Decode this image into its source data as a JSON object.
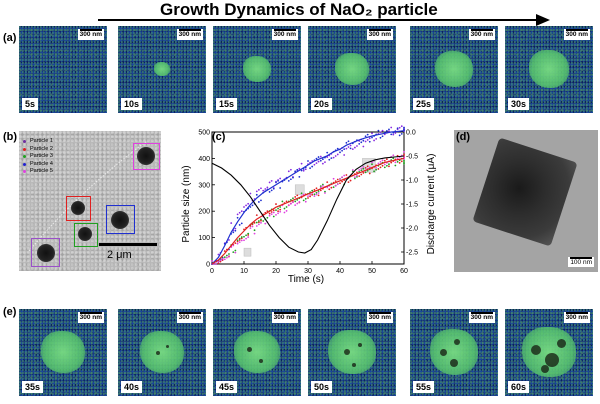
{
  "figure": {
    "title": "Growth Dynamics of NaO₂ particle",
    "panel_labels": {
      "a": "(a)",
      "b": "(b)",
      "c": "(c)",
      "d": "(d)",
      "e": "(e)"
    },
    "row_a_frames": [
      {
        "time": "5s",
        "scale": "300 nm"
      },
      {
        "time": "10s",
        "scale": "300 nm"
      },
      {
        "time": "15s",
        "scale": "300 nm"
      },
      {
        "time": "20s",
        "scale": "300 nm"
      },
      {
        "time": "25s",
        "scale": "300 nm"
      },
      {
        "time": "30s",
        "scale": "300 nm"
      }
    ],
    "row_e_frames": [
      {
        "time": "35s",
        "scale": "300 nm"
      },
      {
        "time": "40s",
        "scale": "300 nm"
      },
      {
        "time": "45s",
        "scale": "300 nm"
      },
      {
        "time": "50s",
        "scale": "300 nm"
      },
      {
        "time": "55s",
        "scale": "300 nm"
      },
      {
        "time": "60s",
        "scale": "300 nm"
      }
    ],
    "panel_b": {
      "scale_bar": "2 μm",
      "legend": [
        {
          "label": "Particle 1",
          "color": "#7030a0"
        },
        {
          "label": "Particle 2",
          "color": "#e02020"
        },
        {
          "label": "Particle 3",
          "color": "#20a020"
        },
        {
          "label": "Particle 4",
          "color": "#2020d0"
        },
        {
          "label": "Particle 5",
          "color": "#e040e0"
        }
      ]
    },
    "panel_d": {
      "scale_bar": "100 nm"
    }
  },
  "chart_data": {
    "type": "scatter",
    "xlabel": "Time (s)",
    "ylabel": "Particle size (nm)",
    "y2label": "Discharge current (μA)",
    "xlim": [
      0,
      60
    ],
    "ylim": [
      0,
      500
    ],
    "y2lim": [
      -2.75,
      0.0
    ],
    "xticks": [
      "0",
      "10",
      "20",
      "30",
      "40",
      "50",
      "60"
    ],
    "yticks": [
      "0",
      "100",
      "200",
      "300",
      "400",
      "500"
    ],
    "y2ticks": [
      "0.0",
      "-0.5",
      "-1.0",
      "-1.5",
      "-2.0",
      "-2.5"
    ],
    "x": [
      0,
      2,
      4,
      6,
      8,
      10,
      12,
      14,
      16,
      18,
      20,
      22,
      24,
      26,
      28,
      30,
      32,
      34,
      36,
      38,
      40,
      42,
      44,
      46,
      48,
      50,
      52,
      54,
      56,
      58,
      60
    ],
    "series": [
      {
        "name": "Particle 1",
        "color": "#8a2be2",
        "values": [
          0,
          30,
          85,
          140,
          185,
          225,
          255,
          275,
          290,
          300,
          315,
          330,
          345,
          355,
          365,
          375,
          385,
          395,
          405,
          415,
          425,
          440,
          450,
          460,
          470,
          480,
          490,
          500,
          505,
          510,
          515
        ]
      },
      {
        "name": "Particle 2",
        "color": "#e02020",
        "values": [
          0,
          15,
          40,
          70,
          100,
          125,
          150,
          170,
          185,
          200,
          215,
          225,
          235,
          245,
          255,
          265,
          275,
          285,
          295,
          305,
          315,
          325,
          335,
          345,
          355,
          365,
          375,
          385,
          390,
          395,
          400
        ]
      },
      {
        "name": "Particle 3",
        "color": "#20a020",
        "values": [
          0,
          10,
          35,
          60,
          90,
          115,
          140,
          160,
          178,
          195,
          210,
          222,
          234,
          246,
          256,
          266,
          276,
          286,
          296,
          306,
          316,
          326,
          336,
          346,
          356,
          366,
          372,
          378,
          385,
          390,
          395
        ]
      },
      {
        "name": "Particle 4",
        "color": "#2030d0",
        "values": [
          0,
          25,
          70,
          120,
          160,
          195,
          225,
          250,
          270,
          285,
          300,
          315,
          330,
          345,
          360,
          375,
          390,
          400,
          410,
          425,
          435,
          450,
          460,
          470,
          478,
          485,
          490,
          495,
          500,
          502,
          505
        ]
      },
      {
        "name": "Particle 5",
        "color": "#e040e0",
        "values": [
          0,
          8,
          30,
          55,
          80,
          105,
          130,
          150,
          165,
          180,
          195,
          210,
          222,
          235,
          248,
          260,
          272,
          284,
          296,
          308,
          320,
          332,
          344,
          356,
          366,
          376,
          384,
          392,
          400,
          405,
          410
        ]
      }
    ],
    "current": {
      "x": [
        0,
        3,
        6,
        9,
        12,
        15,
        18,
        21,
        24,
        27,
        29,
        31,
        33,
        36,
        39,
        42,
        45,
        48,
        51,
        54,
        57,
        60
      ],
      "values": [
        -0.65,
        -0.75,
        -0.9,
        -1.1,
        -1.35,
        -1.65,
        -1.95,
        -2.2,
        -2.4,
        -2.5,
        -2.52,
        -2.45,
        -2.25,
        -1.85,
        -1.4,
        -1.0,
        -0.78,
        -0.65,
        -0.58,
        -0.54,
        -0.52,
        -0.5
      ]
    }
  }
}
